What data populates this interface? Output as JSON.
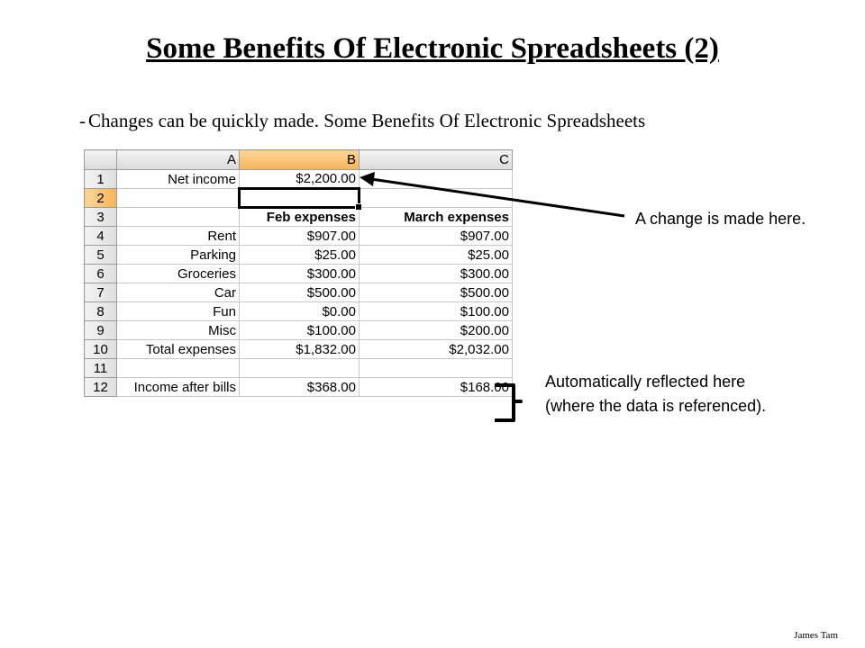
{
  "slide": {
    "title": "Some Benefits Of Electronic Spreadsheets (2)",
    "bullet_marker": "-",
    "bullet_text": "Changes can be quickly made. Some Benefits Of Electronic Spreadsheets",
    "footer": "James Tam"
  },
  "spreadsheet": {
    "columns": [
      "A",
      "B",
      "C"
    ],
    "selected_column": "B",
    "selected_row": "2",
    "rows": [
      {
        "num": "1",
        "a": "Net income",
        "b": "$2,200.00",
        "c": ""
      },
      {
        "num": "2",
        "a": "",
        "b": "",
        "c": ""
      },
      {
        "num": "3",
        "a": "",
        "b": "Feb expenses",
        "c": "March expenses"
      },
      {
        "num": "4",
        "a": "Rent",
        "b": "$907.00",
        "c": "$907.00"
      },
      {
        "num": "5",
        "a": "Parking",
        "b": "$25.00",
        "c": "$25.00"
      },
      {
        "num": "6",
        "a": "Groceries",
        "b": "$300.00",
        "c": "$300.00"
      },
      {
        "num": "7",
        "a": "Car",
        "b": "$500.00",
        "c": "$500.00"
      },
      {
        "num": "8",
        "a": "Fun",
        "b": "$0.00",
        "c": "$100.00"
      },
      {
        "num": "9",
        "a": "Misc",
        "b": "$100.00",
        "c": "$200.00"
      },
      {
        "num": "10",
        "a": "Total expenses",
        "b": "$1,832.00",
        "c": "$2,032.00"
      },
      {
        "num": "11",
        "a": "",
        "b": "",
        "c": ""
      },
      {
        "num": "12",
        "a": "Income after bills",
        "b": "$368.00",
        "c": "$168.00"
      }
    ]
  },
  "annotations": {
    "change_note": "A change is made here.",
    "auto_note": "Automatically reflected here (where the data is referenced)."
  }
}
